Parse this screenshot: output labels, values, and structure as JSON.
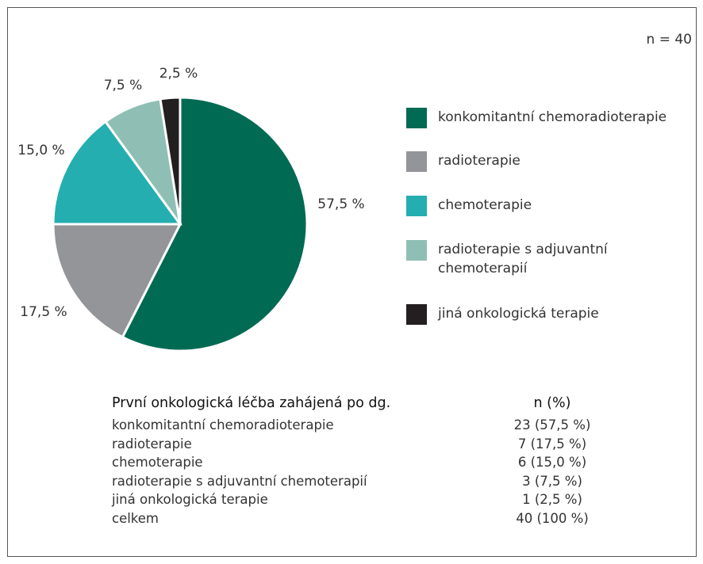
{
  "chart_data": {
    "type": "pie",
    "annotation": "n = 40",
    "categories": [
      "konkomitantní chemoradioterapie",
      "radioterapie",
      "chemoterapie",
      "radioterapie s adjuvantní chemoterapií",
      "jiná onkologická terapie"
    ],
    "values": [
      57.5,
      17.5,
      15.0,
      7.5,
      2.5
    ],
    "value_labels": [
      "57,5 %",
      "17,5 %",
      "15,0 %",
      "7,5 %",
      "2,5 %"
    ],
    "colors": [
      "#006a53",
      "#939598",
      "#24aeaf",
      "#8fbfb4",
      "#231f20"
    ]
  },
  "table": {
    "header": [
      "První onkologická léčba zahájená po dg.",
      "n (%)"
    ],
    "rows": [
      [
        "konkomitantní chemoradioterapie",
        "23 (57,5 %)"
      ],
      [
        "radioterapie",
        "7 (17,5 %)"
      ],
      [
        "chemoterapie",
        "6 (15,0 %)"
      ],
      [
        "radioterapie s adjuvantní chemoterapií",
        "3 (7,5 %)"
      ],
      [
        "jiná onkologická terapie",
        "1 (2,5 %)"
      ],
      [
        "celkem",
        "40 (100 %)"
      ]
    ]
  }
}
